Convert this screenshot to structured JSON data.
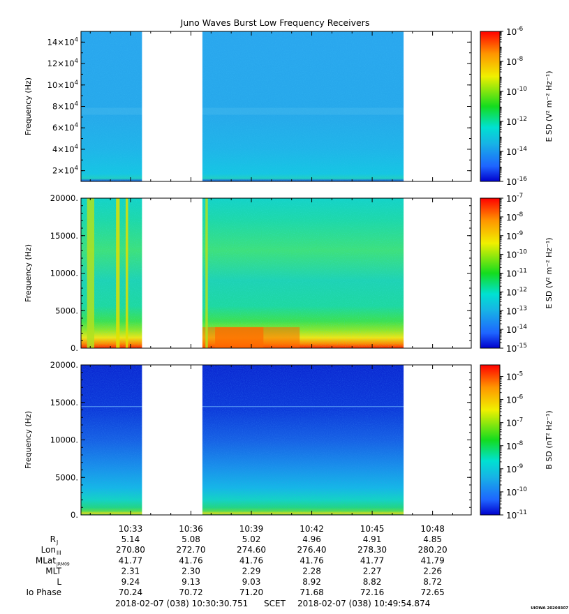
{
  "title": "Juno Waves Burst Low Frequency Receivers",
  "credit": "UIOWA 20200307",
  "colors": {
    "deep_blue": "#0000cc",
    "blue": "#1e64ff",
    "cyan": "#17b2e6",
    "aqua": "#00e1d2",
    "green": "#14dc1e",
    "yellow": "#f0f000",
    "orange": "#ff9600",
    "red": "#ff0000"
  },
  "chart_data": [
    {
      "type": "heatmap",
      "name": "panel-1",
      "ylabel": "Frequency (Hz)",
      "ylim": [
        10000,
        150000
      ],
      "yticks": [
        {
          "v": 20000,
          "m": "2×10",
          "e": "4"
        },
        {
          "v": 40000,
          "m": "4×10",
          "e": "4"
        },
        {
          "v": 60000,
          "m": "6×10",
          "e": "4"
        },
        {
          "v": 80000,
          "m": "8×10",
          "e": "4"
        },
        {
          "v": 100000,
          "m": "10×10",
          "e": "4"
        },
        {
          "v": 120000,
          "m": "12×10",
          "e": "4"
        },
        {
          "v": 140000,
          "m": "14×10",
          "e": "4"
        }
      ],
      "colorbar": {
        "label": "E SD (V² m⁻² Hz⁻¹)",
        "scale": "log",
        "range": [
          -16,
          -6
        ],
        "ticks": [
          {
            "e": "-6",
            "v": -6
          },
          {
            "e": "-8",
            "v": -8
          },
          {
            "e": "-10",
            "v": -10
          },
          {
            "e": "-12",
            "v": -12
          },
          {
            "e": "-14",
            "v": -14
          },
          {
            "e": "-16",
            "v": -16
          }
        ]
      },
      "data_gaps": [
        [
          10.5595,
          10.6095
        ],
        [
          10.776,
          10.8595
        ]
      ]
    },
    {
      "type": "heatmap",
      "name": "panel-2",
      "ylabel": "Frequency (Hz)",
      "ylim": [
        0,
        20000
      ],
      "yticks": [
        {
          "v": 0,
          "label": "0."
        },
        {
          "v": 5000,
          "label": "5000."
        },
        {
          "v": 10000,
          "label": "10000."
        },
        {
          "v": 15000,
          "label": "15000."
        },
        {
          "v": 20000,
          "label": "20000."
        }
      ],
      "colorbar": {
        "label": "E SD (V² m⁻² Hz⁻¹)",
        "scale": "log",
        "range": [
          -15,
          -7
        ],
        "ticks": [
          {
            "e": "-7",
            "v": -7
          },
          {
            "e": "-8",
            "v": -8
          },
          {
            "e": "-9",
            "v": -9
          },
          {
            "e": "-10",
            "v": -10
          },
          {
            "e": "-11",
            "v": -11
          },
          {
            "e": "-12",
            "v": -12
          },
          {
            "e": "-13",
            "v": -13
          },
          {
            "e": "-14",
            "v": -14
          },
          {
            "e": "-15",
            "v": -15
          }
        ]
      },
      "data_gaps": [
        [
          10.5595,
          10.6095
        ],
        [
          10.776,
          10.8595
        ]
      ]
    },
    {
      "type": "heatmap",
      "name": "panel-3",
      "ylabel": "Frequency (Hz)",
      "ylim": [
        0,
        20000
      ],
      "yticks": [
        {
          "v": 0,
          "label": "0."
        },
        {
          "v": 5000,
          "label": "5000."
        },
        {
          "v": 10000,
          "label": "10000."
        },
        {
          "v": 15000,
          "label": "15000."
        },
        {
          "v": 20000,
          "label": "20000."
        }
      ],
      "colorbar": {
        "label": "B SD (nT² Hz⁻¹)",
        "scale": "log",
        "range": [
          -11,
          -4.5
        ],
        "ticks": [
          {
            "e": "-5",
            "v": -5
          },
          {
            "e": "-6",
            "v": -6
          },
          {
            "e": "-7",
            "v": -7
          },
          {
            "e": "-8",
            "v": -8
          },
          {
            "e": "-9",
            "v": -9
          },
          {
            "e": "-10",
            "v": -10
          },
          {
            "e": "-11",
            "v": -11
          }
        ]
      },
      "data_gaps": [
        [
          10.5595,
          10.6095
        ],
        [
          10.776,
          10.8595
        ]
      ]
    }
  ],
  "time_axis": {
    "range_hours": [
      10.509,
      10.832
    ],
    "ticks": [
      {
        "h": 10.55,
        "label": "10:33"
      },
      {
        "h": 10.6,
        "label": "10:36"
      },
      {
        "h": 10.65,
        "label": "10:39"
      },
      {
        "h": 10.7,
        "label": "10:42"
      },
      {
        "h": 10.75,
        "label": "10:45"
      },
      {
        "h": 10.8,
        "label": "10:48"
      }
    ],
    "start": "2018-02-07 (038) 10:30:30.751",
    "scet": "SCET",
    "end": "2018-02-07 (038) 10:49:54.874"
  },
  "ephemeris": [
    {
      "label": "R",
      "sub": "J",
      "values": [
        "5.14",
        "5.08",
        "5.02",
        "4.96",
        "4.91",
        "4.85"
      ]
    },
    {
      "label": "Lon",
      "sub": "III",
      "values": [
        "270.80",
        "272.70",
        "274.60",
        "276.40",
        "278.30",
        "280.20"
      ]
    },
    {
      "label": "MLat",
      "sub": "JRM09",
      "values": [
        "41.77",
        "41.76",
        "41.76",
        "41.76",
        "41.77",
        "41.79"
      ]
    },
    {
      "label": "MLT",
      "sub": "",
      "values": [
        "2.31",
        "2.30",
        "2.29",
        "2.28",
        "2.27",
        "2.26"
      ]
    },
    {
      "label": "L",
      "sub": "",
      "values": [
        "9.24",
        "9.13",
        "9.03",
        "8.92",
        "8.82",
        "8.72"
      ]
    },
    {
      "label": "Io Phase",
      "sub": "",
      "values": [
        "70.24",
        "70.72",
        "71.20",
        "71.68",
        "72.16",
        "72.65"
      ]
    }
  ]
}
